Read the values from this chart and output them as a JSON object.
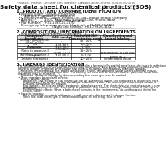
{
  "header_left": "Product Name: Lithium Ion Battery Cell",
  "header_right": "Publication Control: SDS-049-00015\nEstablishment / Revision: Dec.7.2016",
  "title": "Safety data sheet for chemical products (SDS)",
  "section1_title": "1. PRODUCT AND COMPANY IDENTIFICATION",
  "section1_lines": [
    "  • Product name: Lithium Ion Battery Cell",
    "  • Product code: Cylindrical-type cell",
    "       (AP1865U, (AP1865U, (AP1865U)",
    "  • Company name:    Sanyo Electric Co., Ltd., Mobile Energy Company",
    "  • Address:          2001, Kamiosaki, Suonishi-City, Hyogo, Japan",
    "  • Telephone number:    +81-1799-26-4111",
    "  • Fax number:    +81-1799-26-4120",
    "  • Emergency telephone number (daytime): +81-799-26-3562",
    "                                    (Night and holiday): +81-799-26-3101"
  ],
  "section2_title": "2. COMPOSITION / INFORMATION ON INGREDIENTS",
  "section2_intro": "  • Substance or preparation: Preparation",
  "section2_sub": "  • Information about the chemical nature of product:",
  "table_headers": [
    "Component /\nIngredients",
    "CAS number",
    "Concentration /\nConcentration range",
    "Classification and\nhazard labeling"
  ],
  "table_rows": [
    [
      "Lithium cobalt oxide\n(LiMn(CoO2)s)",
      "-",
      "30~45%",
      "-"
    ],
    [
      "Iron",
      "7439-89-6",
      "15~25%",
      "-"
    ],
    [
      "Aluminium",
      "7429-90-5",
      "2~6%",
      "-"
    ],
    [
      "Graphite\n(Ratio to graphite-l)\n(AP-Micro graphite-l)",
      "7782-42-5\n(7782-42-5)",
      "15~25%",
      "-"
    ],
    [
      "Copper",
      "7440-50-8",
      "5~15%",
      "Sensitization of the skin\ngroup 9a,2"
    ],
    [
      "Organic electrolyte",
      "-",
      "10~20%",
      "Inflammable liquid"
    ]
  ],
  "section3_title": "3. HAZARDS IDENTIFICATION",
  "section3_text": [
    "  For this battery cell, chemical materials are stored in a hermetically sealed metal case, designed to withstand",
    "  temperatures and pressures-perturbations during normal use. As a result, during normal use, there is no",
    "  physical danger of ignition or explosion and there is no danger of hazardous materials leakage.",
    "    However, if exposed to a fire, added mechanical shocks, decomposed, under electro-chemical misuse,",
    "  the gas release vent will be operated. The battery cell case will be breached at fire patterns, hazardous",
    "  materials may be released.",
    "    Moreover, if heated strongly by the surrounding fire, some gas may be emitted.",
    "",
    "  • Most important hazard and effects:",
    "    Human health effects:",
    "       Inhalation: The release of the electrolyte has an anesthesia action and stimulates a respiratory tract.",
    "       Skin contact: The release of the electrolyte stimulates a skin. The electrolyte skin contact causes a",
    "       sore and stimulation on the skin.",
    "       Eye contact: The release of the electrolyte stimulates eyes. The electrolyte eye contact causes a sore",
    "       and stimulation on the eye. Especially, a substance that causes a strong inflammation of the eyes is",
    "       contained.",
    "       Environmental effects: Since a battery cell remains in the environment, do not throw out it into the",
    "       environment.",
    "",
    "  • Specific hazards:",
    "       If the electrolyte contacts with water, it will generate detrimental hydrogen fluoride.",
    "       Since the used electrolyte is inflammable liquid, do not bring close to fire."
  ],
  "bg_color": "#ffffff",
  "text_color": "#111111",
  "header_font_size": 3.2,
  "title_font_size": 5.2,
  "section_title_font_size": 3.8,
  "body_font_size": 2.8,
  "table_font_size": 2.6
}
